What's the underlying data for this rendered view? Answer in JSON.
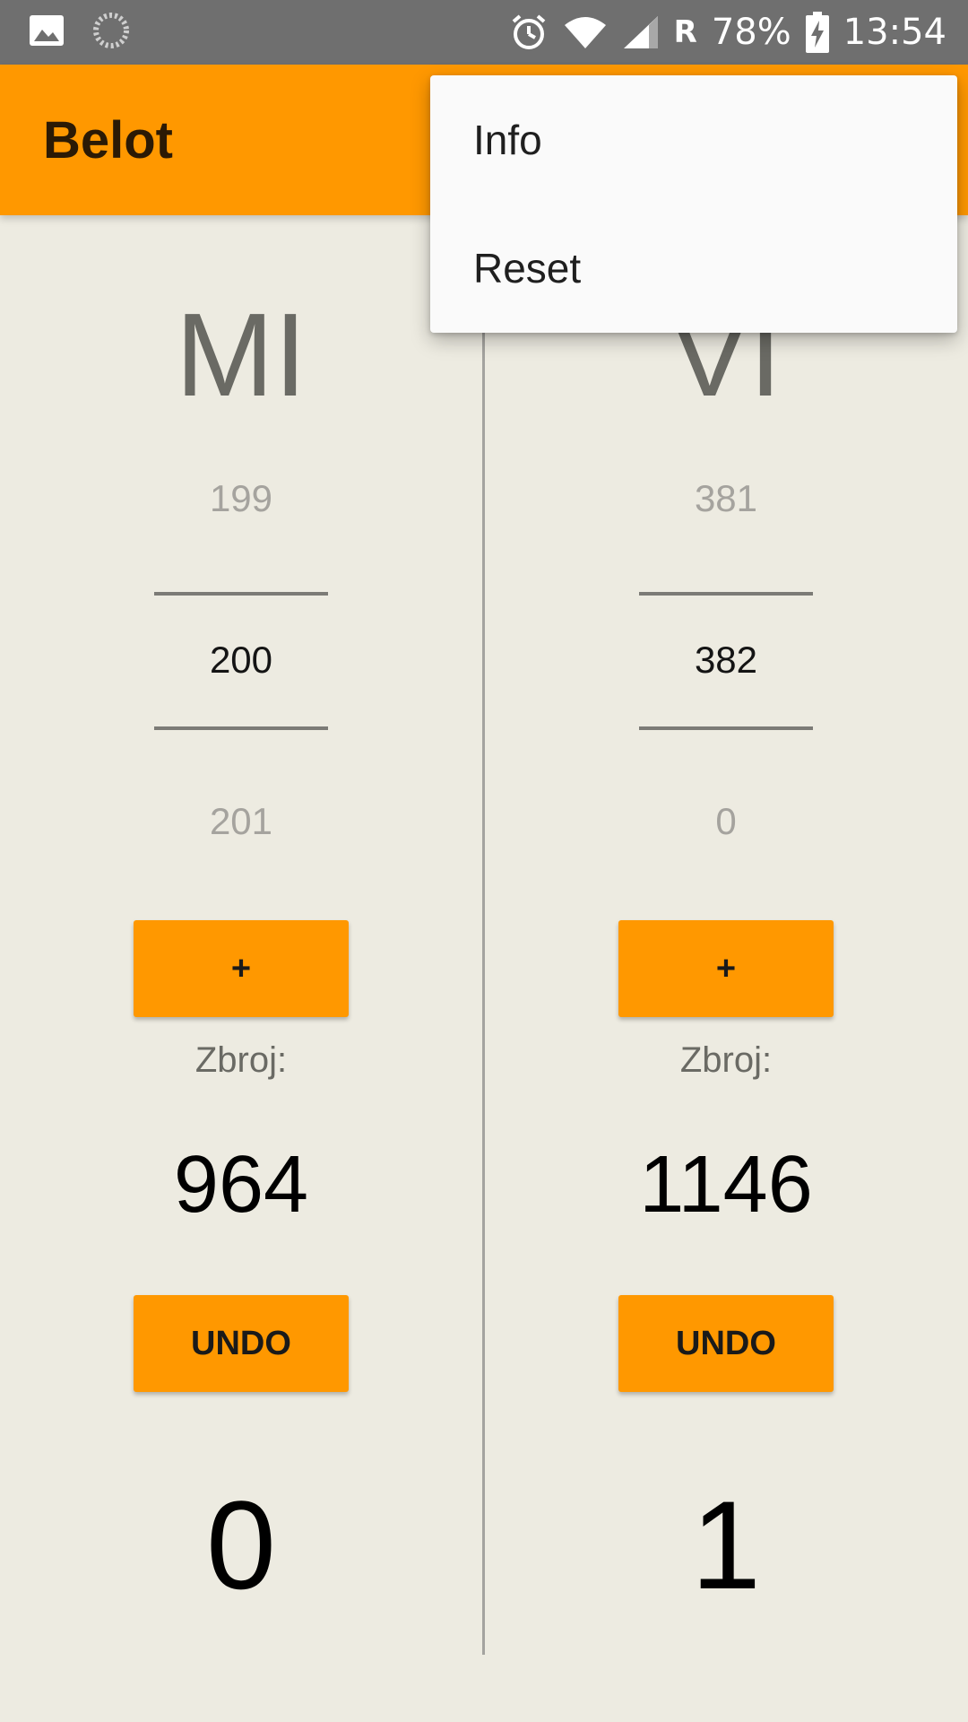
{
  "status_bar": {
    "time": "13:54",
    "battery": "78%",
    "roaming": "R",
    "icons": [
      "gallery-icon",
      "loading-icon",
      "alarm-icon",
      "wifi-icon",
      "signal-icon",
      "battery-charging-icon"
    ]
  },
  "app_bar": {
    "title": "Belot"
  },
  "teams": [
    {
      "name": "MI",
      "picker": {
        "prev": "199",
        "current": "200",
        "next": "201"
      },
      "add_label": "+",
      "sum_label": "Zbroj:",
      "sum_value": "964",
      "undo_label": "UNDO",
      "games_won": "0"
    },
    {
      "name": "VI",
      "picker": {
        "prev": "381",
        "current": "382",
        "next": "0"
      },
      "add_label": "+",
      "sum_label": "Zbroj:",
      "sum_value": "1146",
      "undo_label": "UNDO",
      "games_won": "1"
    }
  ],
  "overflow_menu": {
    "items": [
      {
        "label": "Info"
      },
      {
        "label": "Reset"
      }
    ]
  },
  "colors": {
    "accent": "#FF9800",
    "background": "#EDEBE1",
    "status_bar": "#6F6F6F"
  }
}
